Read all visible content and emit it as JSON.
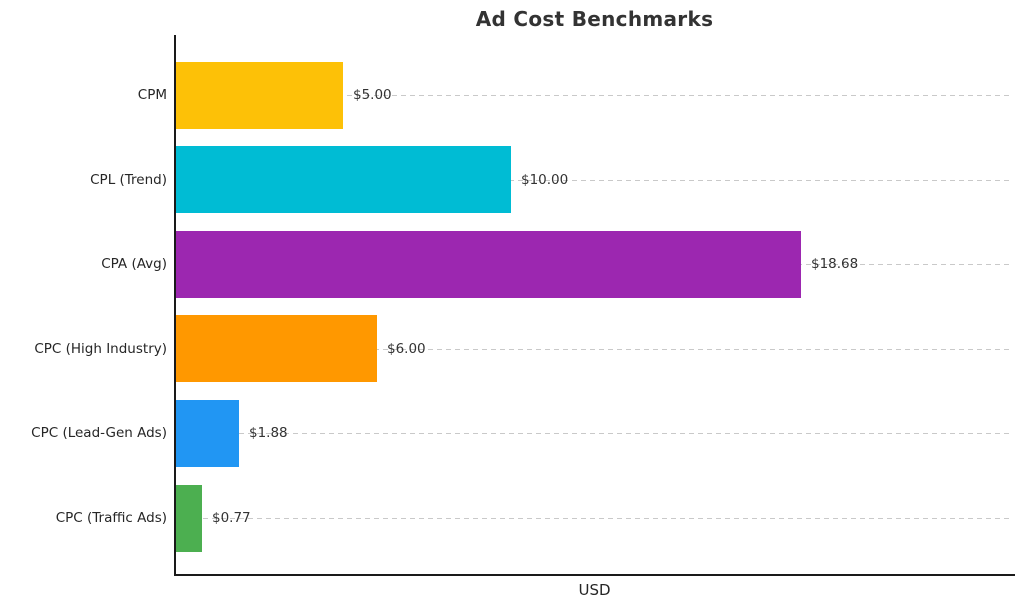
{
  "chart_data": {
    "type": "bar",
    "orientation": "horizontal",
    "title": "Ad Cost Benchmarks",
    "xlabel": "USD",
    "ylabel": "",
    "categories": [
      "CPM",
      "CPL (Trend)",
      "CPA (Avg)",
      "CPC (High Industry)",
      "CPC (Lead-Gen Ads)",
      "CPC (Traffic Ads)"
    ],
    "values": [
      5.0,
      10.0,
      18.68,
      6.0,
      1.88,
      0.77
    ],
    "value_labels": [
      "$5.00",
      "$10.00",
      "$18.68",
      "$6.00",
      "$1.88",
      "$0.77"
    ],
    "bar_colors": [
      "#fdc107",
      "#00bcd4",
      "#9c27b0",
      "#ff9800",
      "#2196f3",
      "#4caf50"
    ],
    "xlim": [
      0,
      25
    ],
    "grid": "horizontal dashed per category",
    "legend": "none"
  },
  "colors": {
    "title_text": "#333333",
    "label_text": "#262626",
    "value_text": "#333333",
    "axis": "#1a1a1a",
    "gridline": "#c9c9c9",
    "background": "#ffffff"
  }
}
